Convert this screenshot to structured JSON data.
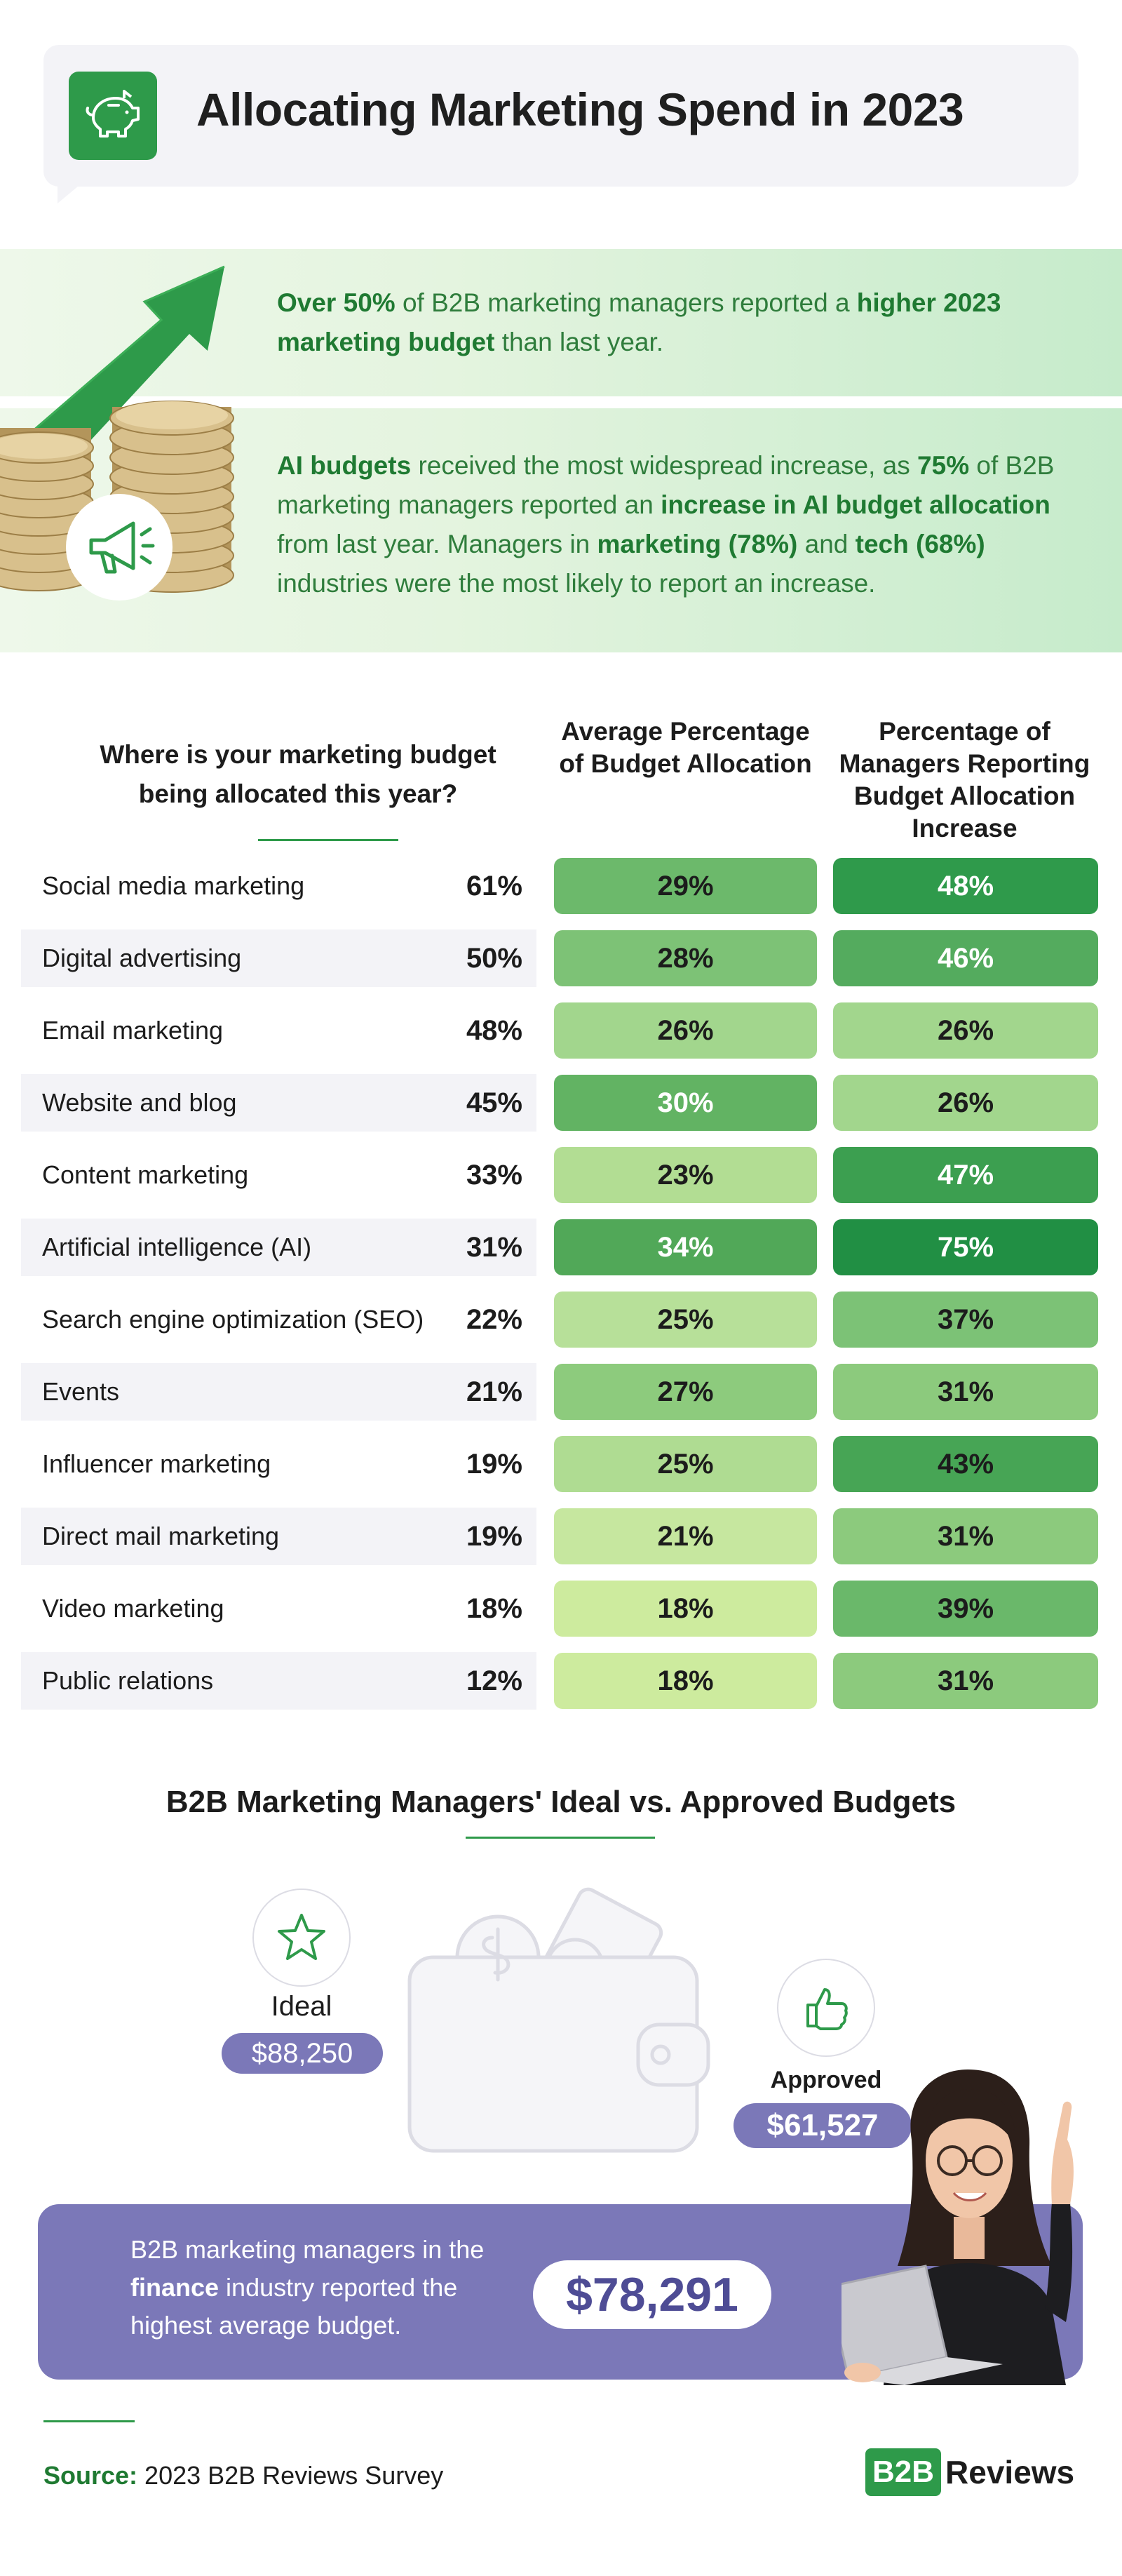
{
  "header": {
    "title": "Allocating Marketing Spend in 2023",
    "icon": "piggy-bank-icon"
  },
  "highlights": {
    "first": {
      "p1": "Over 50%",
      "p2": " of B2B marketing managers reported a ",
      "p3": "higher 2023 marketing budget",
      "p4": " than last year."
    },
    "second": {
      "p1": "AI budgets",
      "p2": " received the most widespread increase, as ",
      "p3": "75%",
      "p4": " of B2B marketing managers reported an ",
      "p5": "increase in AI budget allocation",
      "p6": " from last year. Managers in ",
      "p7": "marketing (78%)",
      "p8": " and ",
      "p9": "tech (68%)",
      "p10": " industries were the most likely to report an increase."
    }
  },
  "table": {
    "question": "Where is your marketing budget being allocated this year?",
    "col1_header": "Average Percentage of Budget Allocation",
    "col2_header": "Percentage of Managers Reporting Budget Allocation Increase",
    "rows": [
      {
        "label": "Social media marketing",
        "pct": "61%",
        "avg": "29%",
        "inc": "48%"
      },
      {
        "label": "Digital advertising",
        "pct": "50%",
        "avg": "28%",
        "inc": "46%"
      },
      {
        "label": "Email marketing",
        "pct": "48%",
        "avg": "26%",
        "inc": "26%"
      },
      {
        "label": "Website and blog",
        "pct": "45%",
        "avg": "30%",
        "inc": "26%"
      },
      {
        "label": "Content marketing",
        "pct": "33%",
        "avg": "23%",
        "inc": "47%"
      },
      {
        "label": "Artificial intelligence (AI)",
        "pct": "31%",
        "avg": "34%",
        "inc": "75%"
      },
      {
        "label": "Search engine optimization (SEO)",
        "pct": "22%",
        "avg": "25%",
        "inc": "37%"
      },
      {
        "label": "Events",
        "pct": "21%",
        "avg": "27%",
        "inc": "31%"
      },
      {
        "label": "Influencer marketing",
        "pct": "19%",
        "avg": "25%",
        "inc": "43%"
      },
      {
        "label": "Direct mail marketing",
        "pct": "19%",
        "avg": "21%",
        "inc": "31%"
      },
      {
        "label": "Video marketing",
        "pct": "18%",
        "avg": "18%",
        "inc": "39%"
      },
      {
        "label": "Public relations",
        "pct": "12%",
        "avg": "18%",
        "inc": "31%"
      }
    ],
    "colors": {
      "avg": [
        "#6cb96b",
        "#7dc276",
        "#a2d68d",
        "#62b363",
        "#b2dd93",
        "#51a858",
        "#b7e099",
        "#8dcb7d",
        "#afdc92",
        "#c6e79f",
        "#cdeb9e",
        "#cdeb9e"
      ],
      "inc": [
        "#2f9a4b",
        "#54ab5e",
        "#a2d68d",
        "#a2d68d",
        "#3c9f50",
        "#218f44",
        "#7cc276",
        "#8cca7d",
        "#47a555",
        "#8cca7d",
        "#6ab86a",
        "#8cca7d"
      ],
      "avg_text": [
        "#1c1c1c",
        "#1c1c1c",
        "#1c1c1c",
        "#ffffff",
        "#1c1c1c",
        "#ffffff",
        "#1c1c1c",
        "#1c1c1c",
        "#1c1c1c",
        "#1c1c1c",
        "#1c1c1c",
        "#1c1c1c"
      ],
      "inc_text": [
        "#ffffff",
        "#ffffff",
        "#1c1c1c",
        "#1c1c1c",
        "#ffffff",
        "#ffffff",
        "#1c1c1c",
        "#1c1c1c",
        "#1c1c1c",
        "#1c1c1c",
        "#1c1c1c",
        "#1c1c1c"
      ]
    }
  },
  "budgets": {
    "title": "B2B Marketing Managers' Ideal vs. Approved Budgets",
    "ideal_label": "Ideal",
    "ideal_value": "$88,250",
    "approved_label": "Approved",
    "approved_value": "$61,527"
  },
  "finance": {
    "t1": "B2B marketing managers in the ",
    "t2": "finance",
    "t3": " industry reported the highest average budget.",
    "value": "$78,291"
  },
  "footer": {
    "source_label": "Source:",
    "source_text": " 2023 B2B Reviews Survey",
    "logo_box": "B2B",
    "logo_text": "Reviews"
  }
}
